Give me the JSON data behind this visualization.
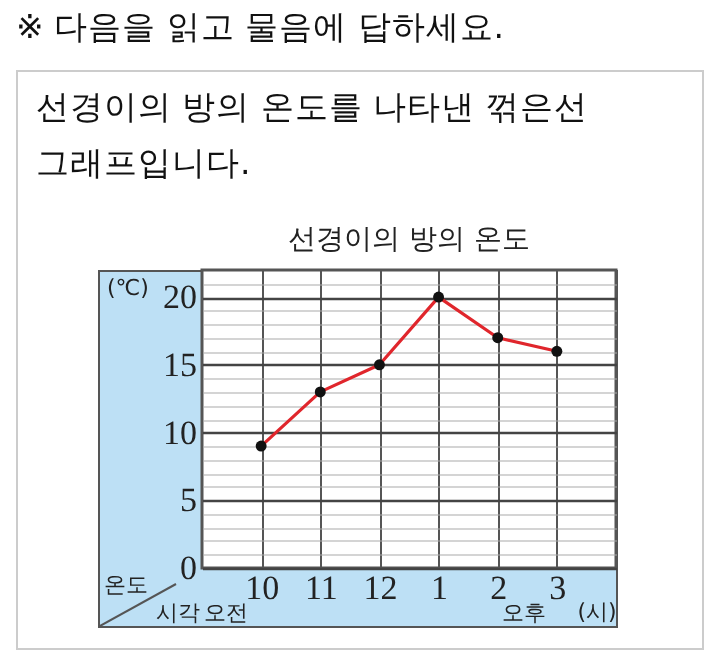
{
  "chart_data": {
    "type": "line",
    "title": "선경이의 방의 온도",
    "subtitle": "선경이의 방의 온도를 나타낸 꺾은선 그래프입니다.",
    "ylabel": "(℃)",
    "xlabel": "(시)",
    "annotations": [
      "※ 다음을 읽고 물음에 답하세요.",
      "온도",
      "시각",
      "오전",
      "오후"
    ],
    "categories": [
      "10",
      "11",
      "12",
      "1",
      "2",
      "3"
    ],
    "series": [
      {
        "color": "#e0262c",
        "values": [
          9,
          13,
          15,
          20,
          17,
          16
        ]
      }
    ],
    "ylim": [
      0,
      22
    ],
    "yticks": [
      0,
      {
        "value": 1,
        "label": null
      },
      {
        "value": 2,
        "label": null
      },
      {
        "value": 3,
        "label": null
      },
      {
        "value": 4,
        "label": null
      },
      5,
      {
        "value": 6,
        "label": null
      },
      {
        "value": 7,
        "label": null
      },
      {
        "value": 8,
        "label": null
      },
      {
        "value": 9,
        "label": null
      },
      10,
      {
        "value": 11,
        "label": null
      },
      {
        "value": 12,
        "label": null
      },
      {
        "value": 13,
        "label": null
      },
      {
        "value": 14,
        "label": null
      },
      15,
      {
        "value": 16,
        "label": null
      },
      {
        "value": 17,
        "label": null
      },
      {
        "value": 18,
        "label": null
      },
      {
        "value": 19,
        "label": null
      },
      20,
      {
        "value": 21,
        "label": null
      }
    ],
    "grid": true,
    "marker": "circle",
    "line_style": "solid"
  }
}
